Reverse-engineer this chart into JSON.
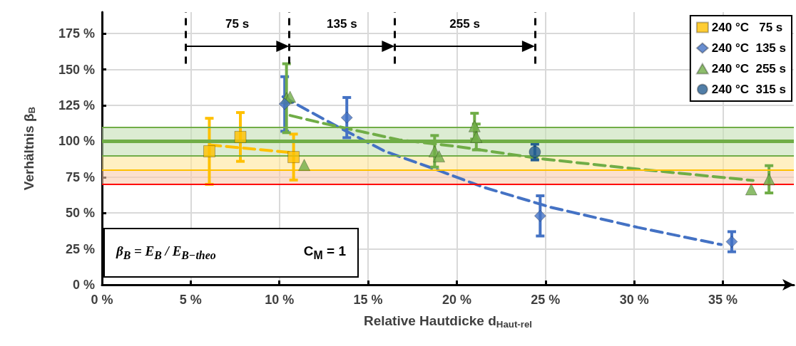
{
  "chart_data": {
    "type": "scatter",
    "xlabel": "Relative Hautdicke d$_{Haut-rel}$",
    "ylabel": "Verhältnis β$_{B}$",
    "xlim": [
      0,
      39
    ],
    "xticks": [
      {
        "value": 0,
        "label": "0 %"
      },
      {
        "value": 5,
        "label": "5 %"
      },
      {
        "value": 10,
        "label": "10 %"
      },
      {
        "value": 15,
        "label": "15 %"
      },
      {
        "value": 20,
        "label": "20 %"
      },
      {
        "value": 25,
        "label": "25 %"
      },
      {
        "value": 30,
        "label": "30 %"
      },
      {
        "value": 35,
        "label": "35 %"
      }
    ],
    "ylim": [
      0,
      190
    ],
    "yticks": [
      {
        "value": 0,
        "label": "0 %"
      },
      {
        "value": 25,
        "label": "25 %"
      },
      {
        "value": 50,
        "label": "50 %"
      },
      {
        "value": 75,
        "label": "75 %"
      },
      {
        "value": 100,
        "label": "100 %"
      },
      {
        "value": 125,
        "label": "125 %"
      },
      {
        "value": 150,
        "label": "150 %"
      },
      {
        "value": 175,
        "label": "175 %"
      }
    ],
    "grid": true,
    "legend": "top right",
    "series": [
      {
        "name": "240 °C   75 s",
        "color": "#ffc000",
        "marker": "square",
        "x": [
          6.05,
          7.8,
          10.8
        ],
        "values": [
          93,
          103,
          89
        ],
        "errors": [
          23,
          17,
          16
        ]
      },
      {
        "name": "240 °C  135 s",
        "color": "#4472c4",
        "marker": "diamond",
        "x": [
          10.3,
          13.8,
          24.7,
          35.5
        ],
        "values": [
          126,
          116.5,
          48,
          30
        ],
        "errors": [
          19,
          14,
          14,
          7
        ]
      },
      {
        "name": "240 °C  255 s",
        "color": "#70ad47",
        "marker": "triangle",
        "x": [
          10.4,
          10.6,
          11.4,
          18.75,
          19.0,
          21.0,
          21.1,
          36.6,
          37.6
        ],
        "values": [
          130,
          131,
          83.5,
          93,
          89.5,
          110.5,
          103,
          66.5,
          73.5
        ],
        "errors": [
          24,
          null,
          null,
          11,
          null,
          9,
          9,
          null,
          9.5
        ]
      },
      {
        "name": "240 °C  315 s",
        "color": "#255e91",
        "marker": "circle",
        "x": [
          24.4
        ],
        "values": [
          92.5
        ],
        "errors": [
          5.5
        ]
      },
      {
        "type": "line",
        "color": "#ffc000",
        "line_style": "dashed",
        "marker": "none",
        "x": [
          6.05,
          10.8
        ],
        "values": [
          97.5,
          92
        ]
      },
      {
        "type": "line",
        "color": "#4472c4",
        "line_style": "dashed",
        "marker": "none",
        "x": [
          10.2,
          13.2,
          15.95,
          18.9,
          21.5,
          25.3,
          30.2,
          34.9
        ],
        "values": [
          131,
          110.7,
          93,
          80,
          68,
          54,
          40,
          28
        ]
      },
      {
        "type": "line",
        "color": "#70ad47",
        "line_style": "dashed",
        "marker": "none",
        "x": [
          10.6,
          12.3,
          16.75,
          20,
          24.75,
          30.2,
          36.7
        ],
        "values": [
          118,
          113,
          101,
          96.4,
          87.8,
          80.6,
          72.7
        ]
      }
    ],
    "ref_lines": [
      {
        "axis": "y",
        "value": 100,
        "color": "#70ad47",
        "line_style": "solid"
      },
      {
        "axis": "y",
        "value": 110,
        "color": "#70ad47",
        "line_style": "solid"
      },
      {
        "axis": "y",
        "value": 90,
        "color": "#70ad47",
        "line_style": "solid"
      },
      {
        "axis": "y",
        "value": 80,
        "color": "#ffc000",
        "line_style": "solid"
      },
      {
        "axis": "y",
        "value": 70,
        "color": "#ff0000",
        "line_style": "solid"
      },
      {
        "axis": "x",
        "value": 4.7,
        "color": "#000000",
        "line_style": "dashed"
      },
      {
        "axis": "x",
        "value": 10.55,
        "color": "#000000",
        "line_style": "dashed"
      },
      {
        "axis": "x",
        "value": 16.5,
        "color": "#000000",
        "line_style": "dashed"
      },
      {
        "axis": "x",
        "value": 24.4,
        "color": "#000000",
        "line_style": "dashed"
      }
    ],
    "bands": [
      {
        "axis": "y",
        "from": 90,
        "to": 110,
        "color": "#c5e0b4"
      },
      {
        "axis": "y",
        "from": 80,
        "to": 90,
        "color": "#ffe699"
      },
      {
        "axis": "y",
        "from": 70,
        "to": 80,
        "color": "#f8cbad"
      }
    ],
    "annotations": [
      "75 s",
      "135 s",
      "255 s",
      "β$_{B}$ = E$_{B}$ / E$_{B−theo}$",
      "C$_{M}$ = 1"
    ]
  }
}
